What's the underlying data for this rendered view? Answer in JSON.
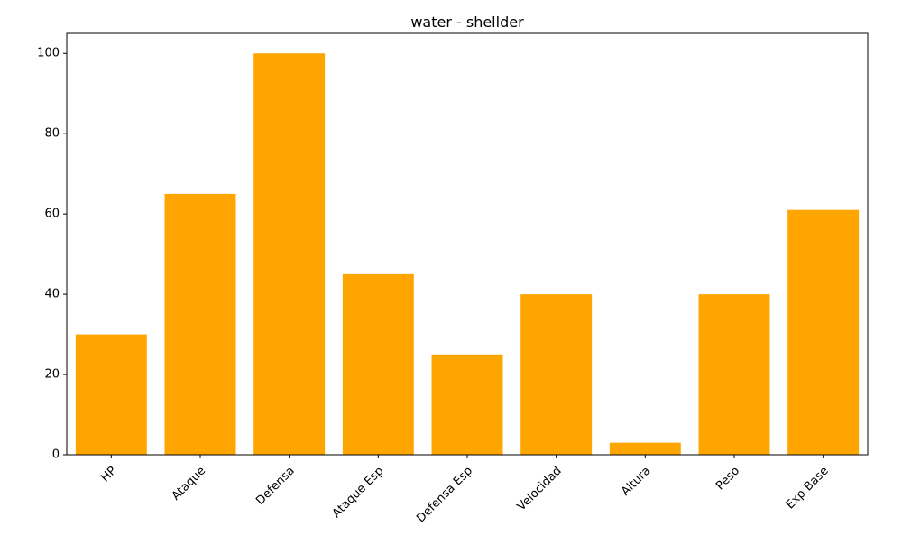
{
  "chart_data": {
    "type": "bar",
    "title": "water - shellder",
    "xlabel": "",
    "ylabel": "",
    "categories": [
      "HP",
      "Ataque",
      "Defensa",
      "Ataque Esp",
      "Defensa Esp",
      "Velocidad",
      "Altura",
      "Peso",
      "Exp Base"
    ],
    "values": [
      30,
      65,
      100,
      45,
      25,
      40,
      3,
      40,
      61
    ],
    "ylim": [
      0,
      105
    ],
    "yticks": [
      0,
      20,
      40,
      60,
      80,
      100
    ],
    "bar_color": "#ffa500",
    "grid": false,
    "legend": "none"
  }
}
